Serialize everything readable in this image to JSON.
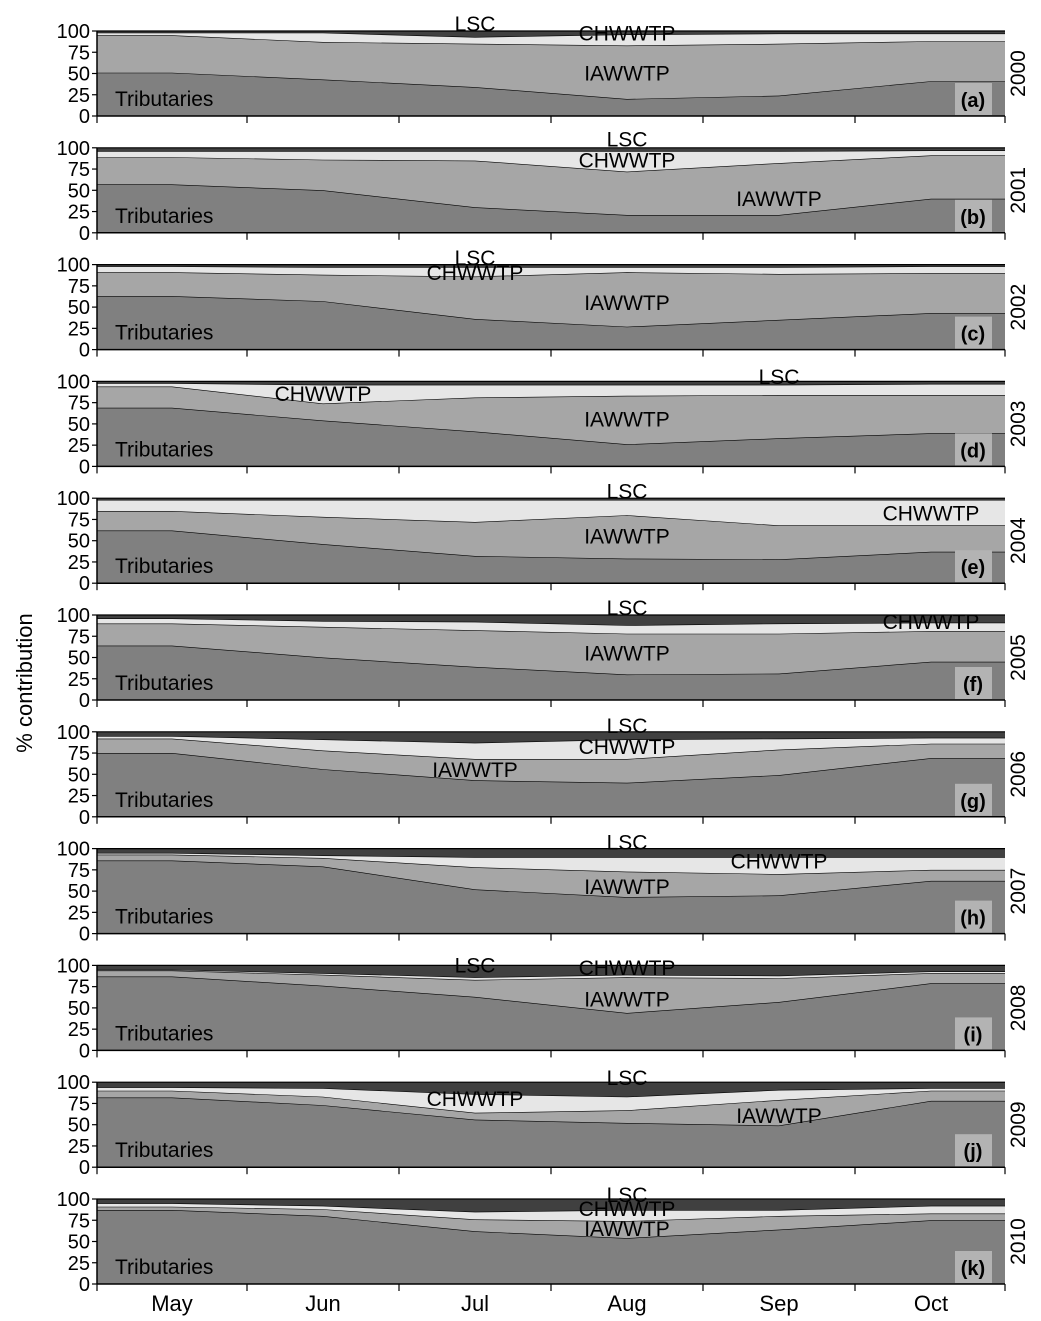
{
  "figure": {
    "ylabel": "% contribution",
    "months": [
      "May",
      "Jun",
      "Jul",
      "Aug",
      "Sep",
      "Oct"
    ],
    "ytick_labels": [
      "100",
      "75",
      "50",
      "25",
      "0"
    ],
    "source_labels": [
      "Tributaries",
      "IAWWTP",
      "CHWWTP",
      "LSC"
    ],
    "colors": {
      "Tributaries": "#808080",
      "IAWWTP": "#a6a6a6",
      "CHWWTP": "#e6e6e6",
      "LSC": "#404040",
      "panel_label_bg": "#b3b3b3"
    }
  },
  "chart_data": [
    {
      "type": "area",
      "panel": "(a)",
      "year": "2000",
      "x": [
        "May",
        "Jun",
        "Jul",
        "Aug",
        "Sep",
        "Oct"
      ],
      "ylim": [
        0,
        100
      ],
      "series": [
        {
          "name": "Tributaries",
          "values": [
            51,
            43,
            34,
            20,
            24,
            41
          ]
        },
        {
          "name": "IAWWTP",
          "values": [
            44,
            44,
            51,
            63,
            61,
            47
          ]
        },
        {
          "name": "CHWWTP",
          "values": [
            3,
            11,
            8,
            13,
            12,
            9
          ]
        },
        {
          "name": "LSC",
          "values": [
            2,
            2,
            7,
            4,
            3,
            3
          ]
        }
      ]
    },
    {
      "type": "area",
      "panel": "(b)",
      "year": "2001",
      "x": [
        "May",
        "Jun",
        "Jul",
        "Aug",
        "Sep",
        "Oct"
      ],
      "ylim": [
        0,
        100
      ],
      "series": [
        {
          "name": "Tributaries",
          "values": [
            57,
            50,
            30,
            21,
            21,
            40
          ]
        },
        {
          "name": "IAWWTP",
          "values": [
            32,
            36,
            55,
            51,
            61,
            51
          ]
        },
        {
          "name": "CHWWTP",
          "values": [
            7,
            10,
            11,
            24,
            14,
            6
          ]
        },
        {
          "name": "LSC",
          "values": [
            4,
            4,
            4,
            4,
            4,
            3
          ]
        }
      ]
    },
    {
      "type": "area",
      "panel": "(c)",
      "year": "2002",
      "x": [
        "May",
        "Jun",
        "Jul",
        "Aug",
        "Sep",
        "Oct"
      ],
      "ylim": [
        0,
        100
      ],
      "series": [
        {
          "name": "Tributaries",
          "values": [
            63,
            57,
            36,
            27,
            35,
            43
          ]
        },
        {
          "name": "IAWWTP",
          "values": [
            28,
            31,
            50,
            64,
            54,
            47
          ]
        },
        {
          "name": "CHWWTP",
          "values": [
            7,
            9,
            11,
            6,
            8,
            8
          ]
        },
        {
          "name": "LSC",
          "values": [
            2,
            3,
            3,
            3,
            3,
            2
          ]
        }
      ]
    },
    {
      "type": "area",
      "panel": "(d)",
      "year": "2003",
      "x": [
        "May",
        "Jun",
        "Jul",
        "Aug",
        "Sep",
        "Oct"
      ],
      "ylim": [
        0,
        100
      ],
      "series": [
        {
          "name": "Tributaries",
          "values": [
            69,
            54,
            41,
            26,
            33,
            39
          ]
        },
        {
          "name": "IAWWTP",
          "values": [
            25,
            20,
            40,
            57,
            51,
            45
          ]
        },
        {
          "name": "CHWWTP",
          "values": [
            4,
            22,
            15,
            13,
            12,
            13
          ]
        },
        {
          "name": "LSC",
          "values": [
            2,
            4,
            4,
            4,
            4,
            3
          ]
        }
      ]
    },
    {
      "type": "area",
      "panel": "(e)",
      "year": "2004",
      "x": [
        "May",
        "Jun",
        "Jul",
        "Aug",
        "Sep",
        "Oct"
      ],
      "ylim": [
        0,
        100
      ],
      "series": [
        {
          "name": "Tributaries",
          "values": [
            62,
            46,
            32,
            29,
            28,
            37
          ]
        },
        {
          "name": "IAWWTP",
          "values": [
            23,
            32,
            40,
            51,
            40,
            31
          ]
        },
        {
          "name": "CHWWTP",
          "values": [
            13,
            20,
            26,
            18,
            30,
            30
          ]
        },
        {
          "name": "LSC",
          "values": [
            2,
            2,
            2,
            2,
            2,
            2
          ]
        }
      ]
    },
    {
      "type": "area",
      "panel": "(f)",
      "year": "2005",
      "x": [
        "May",
        "Jun",
        "Jul",
        "Aug",
        "Sep",
        "Oct"
      ],
      "ylim": [
        0,
        100
      ],
      "series": [
        {
          "name": "Tributaries",
          "values": [
            64,
            50,
            39,
            30,
            31,
            45
          ]
        },
        {
          "name": "IAWWTP",
          "values": [
            26,
            36,
            43,
            48,
            47,
            36
          ]
        },
        {
          "name": "CHWWTP",
          "values": [
            6,
            7,
            10,
            10,
            12,
            10
          ]
        },
        {
          "name": "LSC",
          "values": [
            4,
            7,
            8,
            12,
            10,
            9
          ]
        }
      ]
    },
    {
      "type": "area",
      "panel": "(g)",
      "year": "2006",
      "x": [
        "May",
        "Jun",
        "Jul",
        "Aug",
        "Sep",
        "Oct"
      ],
      "ylim": [
        0,
        100
      ],
      "series": [
        {
          "name": "Tributaries",
          "values": [
            75,
            56,
            43,
            40,
            49,
            69
          ]
        },
        {
          "name": "IAWWTP",
          "values": [
            17,
            22,
            25,
            28,
            30,
            17
          ]
        },
        {
          "name": "CHWWTP",
          "values": [
            3,
            13,
            19,
            23,
            13,
            7
          ]
        },
        {
          "name": "LSC",
          "values": [
            5,
            9,
            13,
            9,
            8,
            7
          ]
        }
      ]
    },
    {
      "type": "area",
      "panel": "(h)",
      "year": "2007",
      "x": [
        "May",
        "Jun",
        "Jul",
        "Aug",
        "Sep",
        "Oct"
      ],
      "ylim": [
        0,
        100
      ],
      "series": [
        {
          "name": "Tributaries",
          "values": [
            86,
            79,
            52,
            43,
            45,
            62
          ]
        },
        {
          "name": "IAWWTP",
          "values": [
            7,
            10,
            26,
            30,
            25,
            13
          ]
        },
        {
          "name": "CHWWTP",
          "values": [
            2,
            3,
            12,
            17,
            20,
            15
          ]
        },
        {
          "name": "LSC",
          "values": [
            5,
            8,
            10,
            10,
            10,
            10
          ]
        }
      ]
    },
    {
      "type": "area",
      "panel": "(i)",
      "year": "2008",
      "x": [
        "May",
        "Jun",
        "Jul",
        "Aug",
        "Sep",
        "Oct"
      ],
      "ylim": [
        0,
        100
      ],
      "series": [
        {
          "name": "Tributaries",
          "values": [
            87,
            76,
            63,
            44,
            57,
            79
          ]
        },
        {
          "name": "IAWWTP",
          "values": [
            7,
            13,
            20,
            42,
            28,
            12
          ]
        },
        {
          "name": "CHWWTP",
          "values": [
            1,
            2,
            3,
            3,
            3,
            2
          ]
        },
        {
          "name": "LSC",
          "values": [
            5,
            9,
            14,
            11,
            12,
            7
          ]
        }
      ]
    },
    {
      "type": "area",
      "panel": "(j)",
      "year": "2009",
      "x": [
        "May",
        "Jun",
        "Jul",
        "Aug",
        "Sep",
        "Oct"
      ],
      "ylim": [
        0,
        100
      ],
      "series": [
        {
          "name": "Tributaries",
          "values": [
            82,
            73,
            56,
            52,
            49,
            78
          ]
        },
        {
          "name": "IAWWTP",
          "values": [
            8,
            10,
            8,
            15,
            30,
            12
          ]
        },
        {
          "name": "CHWWTP",
          "values": [
            4,
            10,
            22,
            16,
            12,
            3
          ]
        },
        {
          "name": "LSC",
          "values": [
            6,
            7,
            14,
            17,
            9,
            7
          ]
        }
      ]
    },
    {
      "type": "area",
      "panel": "(k)",
      "year": "2010",
      "x": [
        "May",
        "Jun",
        "Jul",
        "Aug",
        "Sep",
        "Oct"
      ],
      "ylim": [
        0,
        100
      ],
      "series": [
        {
          "name": "Tributaries",
          "values": [
            87,
            80,
            62,
            54,
            64,
            75
          ]
        },
        {
          "name": "IAWWTP",
          "values": [
            4,
            8,
            14,
            20,
            16,
            8
          ]
        },
        {
          "name": "CHWWTP",
          "values": [
            4,
            4,
            9,
            13,
            7,
            9
          ]
        },
        {
          "name": "LSC",
          "values": [
            5,
            8,
            15,
            13,
            13,
            8
          ]
        }
      ]
    }
  ]
}
